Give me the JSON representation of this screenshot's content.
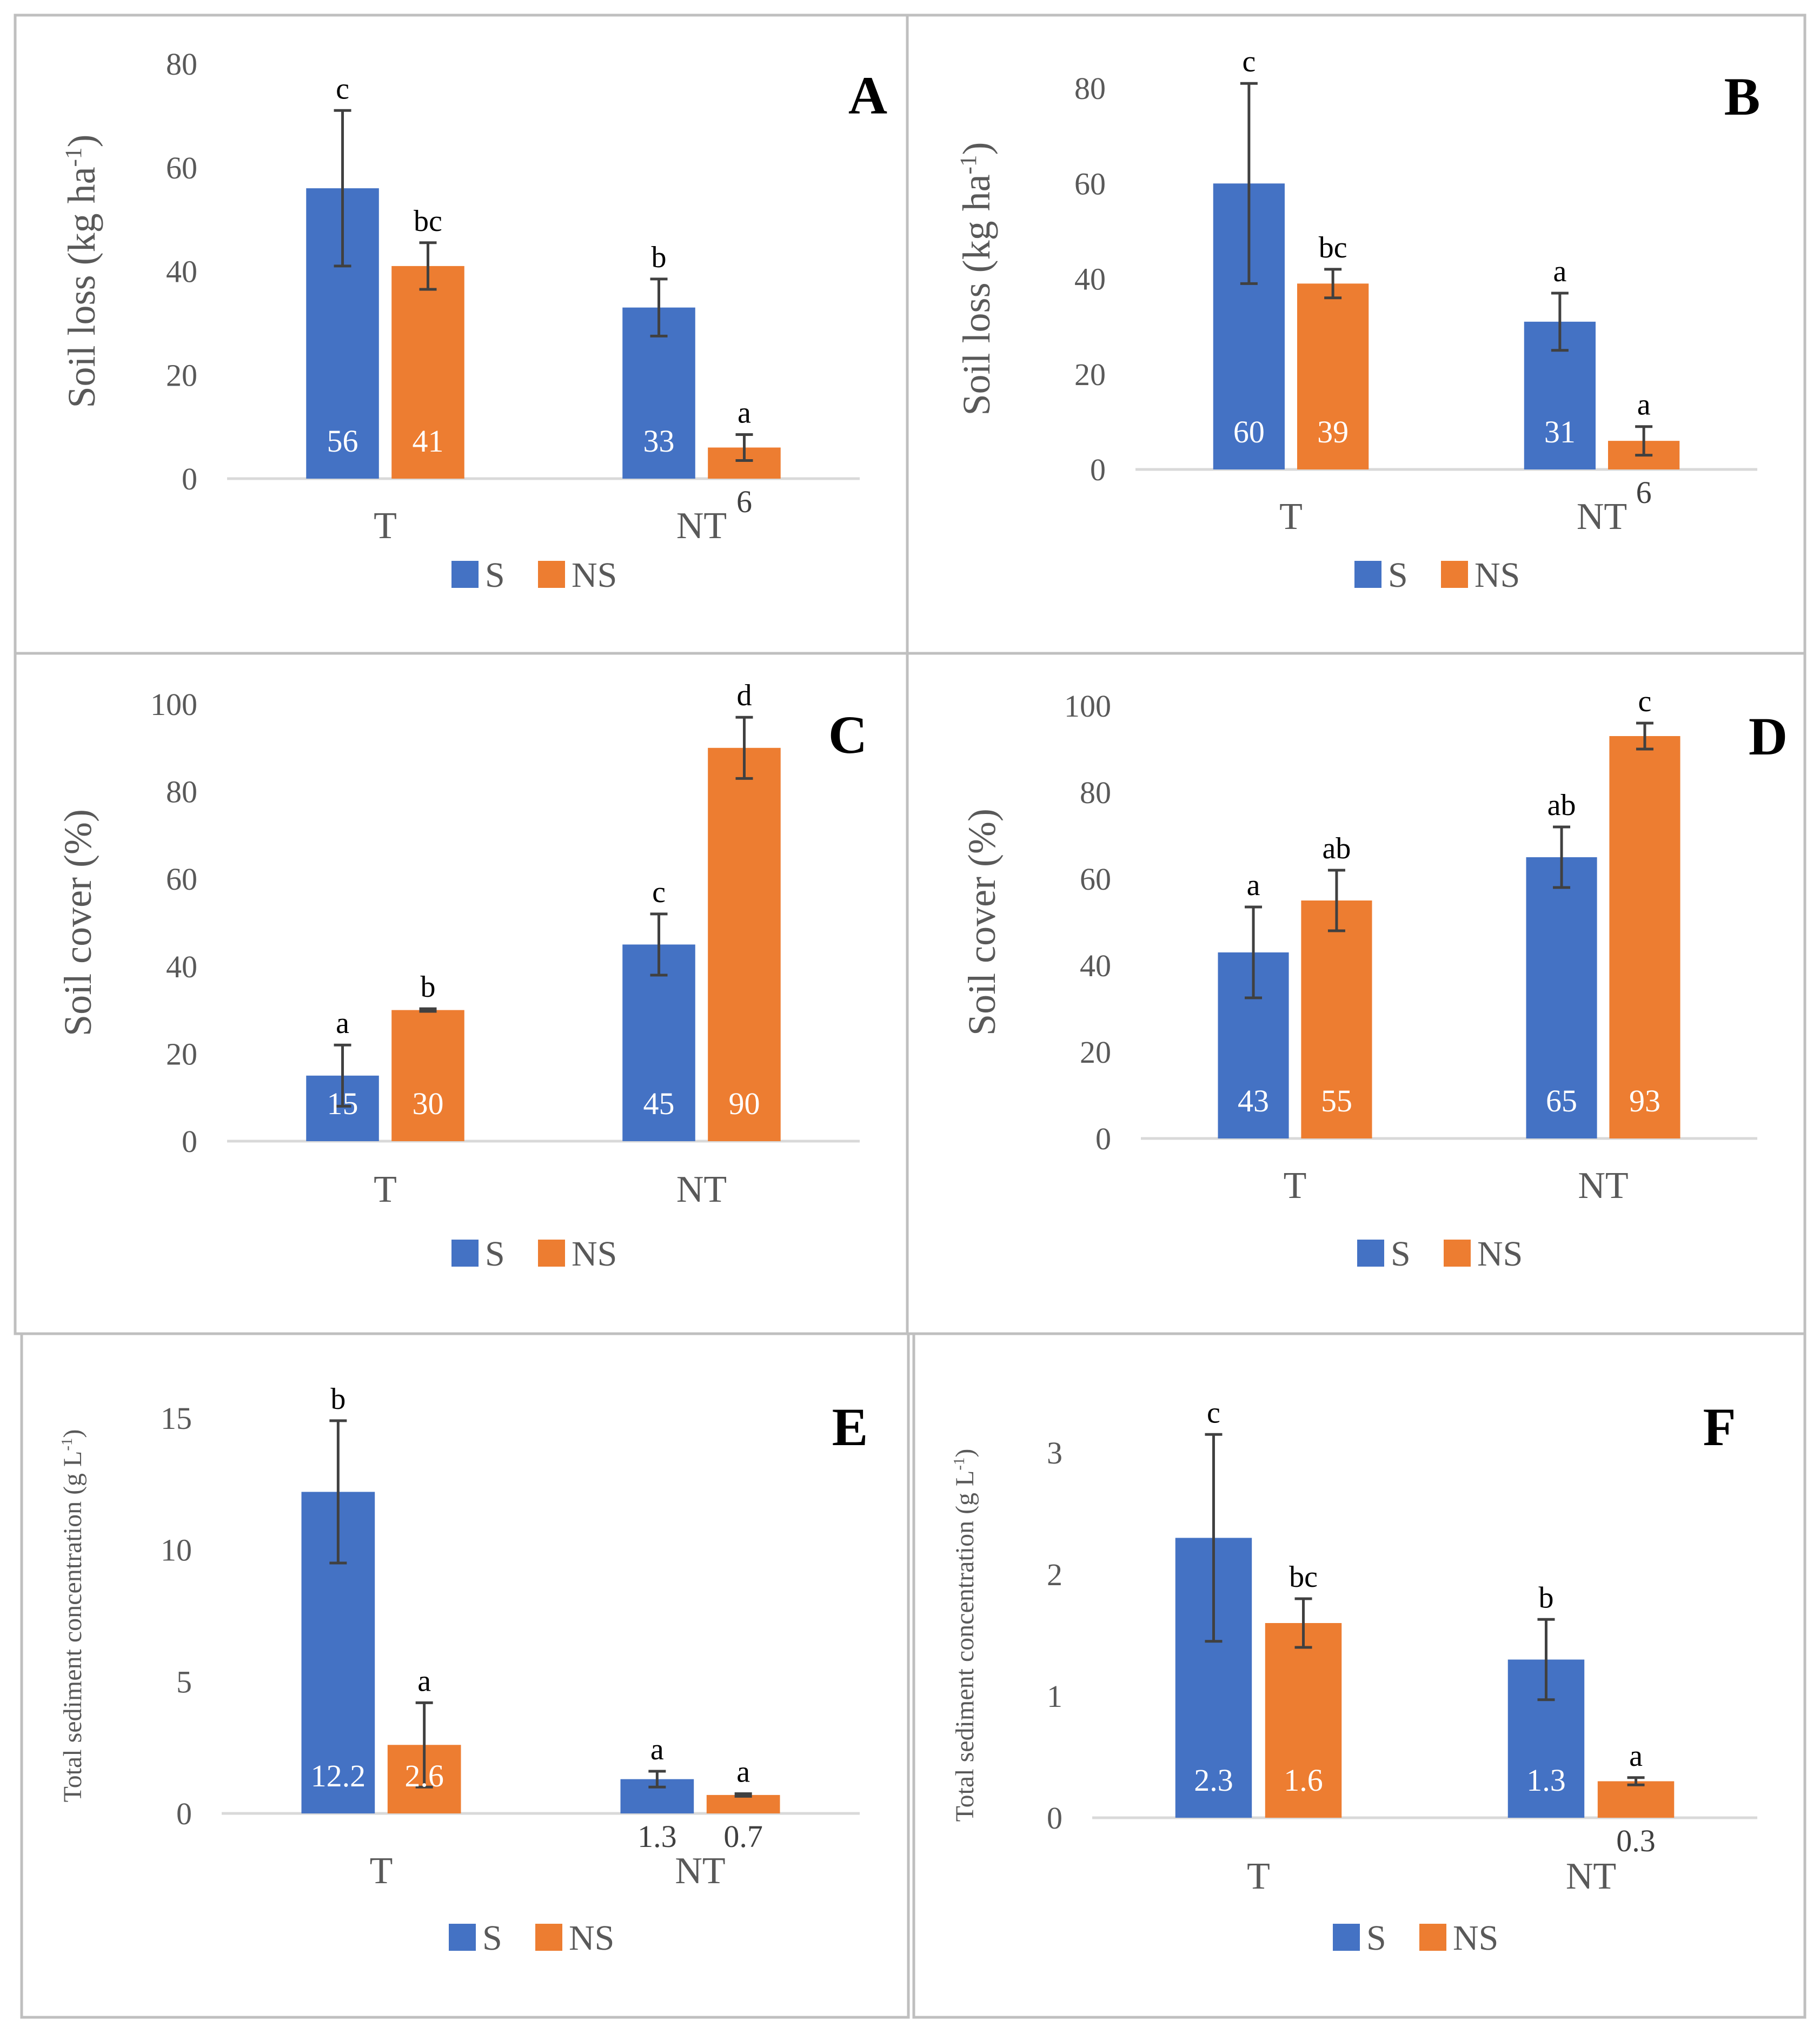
{
  "colors": {
    "S": "#4472C4",
    "NS": "#ED7D31",
    "axis": "#D9D9D9",
    "errorbar": "#404040",
    "frame": "#BFBFBF"
  },
  "legend": {
    "items": [
      {
        "key": "S",
        "label": "S"
      },
      {
        "key": "NS",
        "label": "NS"
      }
    ]
  },
  "chart_data": [
    {
      "panel": "A",
      "type": "bar",
      "ylabel": "Soil loss (kg ha",
      "ylabel_sup": "-1",
      "ylabel_end": ")",
      "categories": [
        "T",
        "NT"
      ],
      "ylim": [
        0,
        80
      ],
      "yticks": [
        0,
        20,
        40,
        60,
        80
      ],
      "series": [
        {
          "name": "S",
          "values": [
            56,
            33
          ],
          "errors": [
            15,
            5.5
          ],
          "labels": [
            "56",
            "33"
          ],
          "letters": [
            "c",
            "b"
          ]
        },
        {
          "name": "NS",
          "values": [
            41,
            6
          ],
          "errors": [
            4.5,
            2.5
          ],
          "labels": [
            "41",
            "6"
          ],
          "letters": [
            "bc",
            "a"
          ]
        }
      ]
    },
    {
      "panel": "B",
      "type": "bar",
      "ylabel": "Soil loss (kg ha",
      "ylabel_sup": "-1",
      "ylabel_end": ")",
      "categories": [
        "T",
        "NT"
      ],
      "ylim": [
        0,
        80
      ],
      "yticks": [
        0,
        20,
        40,
        60,
        80
      ],
      "series": [
        {
          "name": "S",
          "values": [
            60,
            31
          ],
          "errors": [
            21,
            6
          ],
          "labels": [
            "60",
            "31"
          ],
          "letters": [
            "c",
            "a"
          ]
        },
        {
          "name": "NS",
          "values": [
            39,
            6
          ],
          "errors": [
            3,
            3
          ],
          "labels": [
            "39",
            "6"
          ],
          "letters": [
            "bc",
            "a"
          ]
        }
      ]
    },
    {
      "panel": "C",
      "type": "bar",
      "ylabel": "Soil cover (%)",
      "ylabel_sup": "",
      "ylabel_end": "",
      "categories": [
        "T",
        "NT"
      ],
      "ylim": [
        0,
        100
      ],
      "yticks": [
        0,
        20,
        40,
        60,
        80,
        100
      ],
      "series": [
        {
          "name": "S",
          "values": [
            15,
            45
          ],
          "errors": [
            7,
            7
          ],
          "labels": [
            "15",
            "45"
          ],
          "letters": [
            "a",
            "c"
          ]
        },
        {
          "name": "NS",
          "values": [
            30,
            90
          ],
          "errors": [
            0.3,
            7
          ],
          "labels": [
            "30",
            "90"
          ],
          "letters": [
            "b",
            "d"
          ]
        }
      ]
    },
    {
      "panel": "D",
      "type": "bar",
      "ylabel": "Soil cover (%)",
      "ylabel_sup": "",
      "ylabel_end": "",
      "categories": [
        "T",
        "NT"
      ],
      "ylim": [
        0,
        100
      ],
      "yticks": [
        0,
        20,
        40,
        60,
        80,
        100
      ],
      "series": [
        {
          "name": "S",
          "values": [
            43,
            65
          ],
          "errors": [
            10.5,
            7
          ],
          "labels": [
            "43",
            "65"
          ],
          "letters": [
            "a",
            "ab"
          ]
        },
        {
          "name": "NS",
          "values": [
            55,
            93
          ],
          "errors": [
            7,
            3
          ],
          "labels": [
            "55",
            "93"
          ],
          "letters": [
            "ab",
            "c"
          ]
        }
      ]
    },
    {
      "panel": "E",
      "type": "bar",
      "ylabel": "Total sediment concentration (g L",
      "ylabel_sup": "-1",
      "ylabel_end": ")",
      "categories": [
        "T",
        "NT"
      ],
      "ylim": [
        0,
        15
      ],
      "yticks": [
        0,
        5,
        10,
        15
      ],
      "series": [
        {
          "name": "S",
          "values": [
            12.2,
            1.3
          ],
          "errors": [
            2.7,
            0.3
          ],
          "labels": [
            "12.2",
            "1.3"
          ],
          "letters": [
            "b",
            "a"
          ]
        },
        {
          "name": "NS",
          "values": [
            2.6,
            0.7
          ],
          "errors": [
            1.6,
            0.05
          ],
          "labels": [
            "2.6",
            "0.7"
          ],
          "letters": [
            "a",
            "a"
          ]
        }
      ]
    },
    {
      "panel": "F",
      "type": "bar",
      "ylabel": "Total sediment concentration (g L",
      "ylabel_sup": "-1",
      "ylabel_end": ")",
      "categories": [
        "T",
        "NT"
      ],
      "ylim": [
        0,
        3
      ],
      "yticks": [
        0,
        1,
        2,
        3
      ],
      "series": [
        {
          "name": "S",
          "values": [
            2.3,
            1.3
          ],
          "errors": [
            0.85,
            0.33
          ],
          "labels": [
            "2.3",
            "1.3"
          ],
          "letters": [
            "c",
            "b"
          ]
        },
        {
          "name": "NS",
          "values": [
            1.6,
            0.3
          ],
          "errors": [
            0.2,
            0.03
          ],
          "labels": [
            "1.6",
            "0.3"
          ],
          "letters": [
            "bc",
            "a"
          ]
        }
      ]
    }
  ]
}
